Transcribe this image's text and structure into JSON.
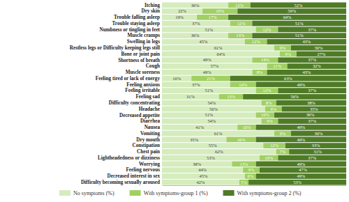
{
  "chart_data": {
    "type": "bar",
    "orientation": "horizontal",
    "stacked": true,
    "data_labels": true,
    "tick_labels": false,
    "legend": "bottom",
    "categories": [
      "Itching",
      "Dry skin",
      "Trouble falling asleep",
      "Trouble staying asleep",
      "Numbness or tingling in feet",
      "Muscle cramps",
      "Swelling in legs",
      "Restless legs or Difficulty keeping legs still",
      "Bone or joint pain",
      "Shortness of breath",
      "Cough",
      "Muscle soreness",
      "Feeling tired or lack of energy",
      "Feeling anxious",
      "Feeling irritable",
      "Feeling sad",
      "Difficulty concentrating",
      "Headache",
      "Decreased appetite",
      "Diarrhea",
      "Nausea",
      "Vomiting",
      "Dry mouth",
      "Constipation",
      "Chest pain",
      "Lightheadedness or dizziness",
      "Worrying",
      "Feeling nervous",
      "Decreased interest in sex",
      "Difficulty becoming sexually aroused"
    ],
    "xlim": [
      0,
      100
    ],
    "series": [
      {
        "name": "No symptoms (%)",
        "color": "#d5ecbd",
        "values": [
          36,
          22,
          19,
          37,
          51,
          36,
          45,
          61,
          64,
          49,
          57,
          49,
          16,
          37,
          51,
          31,
          54,
          56,
          51,
          54,
          41,
          61,
          35,
          55,
          62,
          53,
          38,
          44,
          45,
          42
        ],
        "value_labels": [
          "36%",
          "22%",
          "19%",
          "37%",
          "51%",
          "36%",
          "45%",
          "61%",
          "64%",
          "49%",
          "57%",
          "49%",
          "16%",
          "37%",
          "51%",
          "31%",
          "54%",
          "56%",
          "51%",
          "54%",
          "41%",
          "61%",
          "35%",
          "55%",
          "62%",
          "53%",
          "38%",
          "44%",
          "45%",
          "42%"
        ]
      },
      {
        "name": "With symptoms-group 1 (%)",
        "color": "#a0d063",
        "values": [
          12,
          19,
          17,
          12,
          12,
          13,
          12,
          9,
          9,
          14,
          11,
          8,
          21,
          14,
          12,
          13,
          8,
          9,
          10,
          9,
          10,
          9,
          16,
          12,
          7,
          10,
          13,
          9,
          6,
          5
        ],
        "value_labels": [
          "12%",
          "19%",
          "17%",
          "12%",
          "12%",
          "13%",
          "12%",
          "9%",
          "9%",
          "14%",
          "11%",
          "8%",
          "21%",
          "14%",
          "12%",
          "13%",
          "8%",
          "9%",
          "10%",
          "9%",
          "10%",
          "9%",
          "16%",
          "12%",
          "7%",
          "10%",
          "13%",
          "9%",
          "6%",
          "5%"
        ]
      },
      {
        "name": "With symptoms-group 2 (%)",
        "color": "#4f7b27",
        "values": [
          52,
          59,
          64,
          51,
          37,
          51,
          43,
          30,
          27,
          37,
          32,
          43,
          63,
          49,
          37,
          56,
          38,
          35,
          39,
          37,
          49,
          30,
          49,
          33,
          31,
          37,
          49,
          47,
          49,
          53
        ],
        "value_labels": [
          "52%",
          "59%",
          "64%",
          "51%",
          "37%",
          "51%",
          "43%",
          "30%",
          "27%",
          "37%",
          "32%",
          "43%",
          "63%",
          "49%",
          "37%",
          "56%",
          "38%",
          "35%",
          "39%",
          "37%",
          "49%",
          "30%",
          "49%",
          "33%",
          "31%",
          "37%",
          "49%",
          "47%",
          "49%",
          "53%"
        ]
      }
    ]
  }
}
